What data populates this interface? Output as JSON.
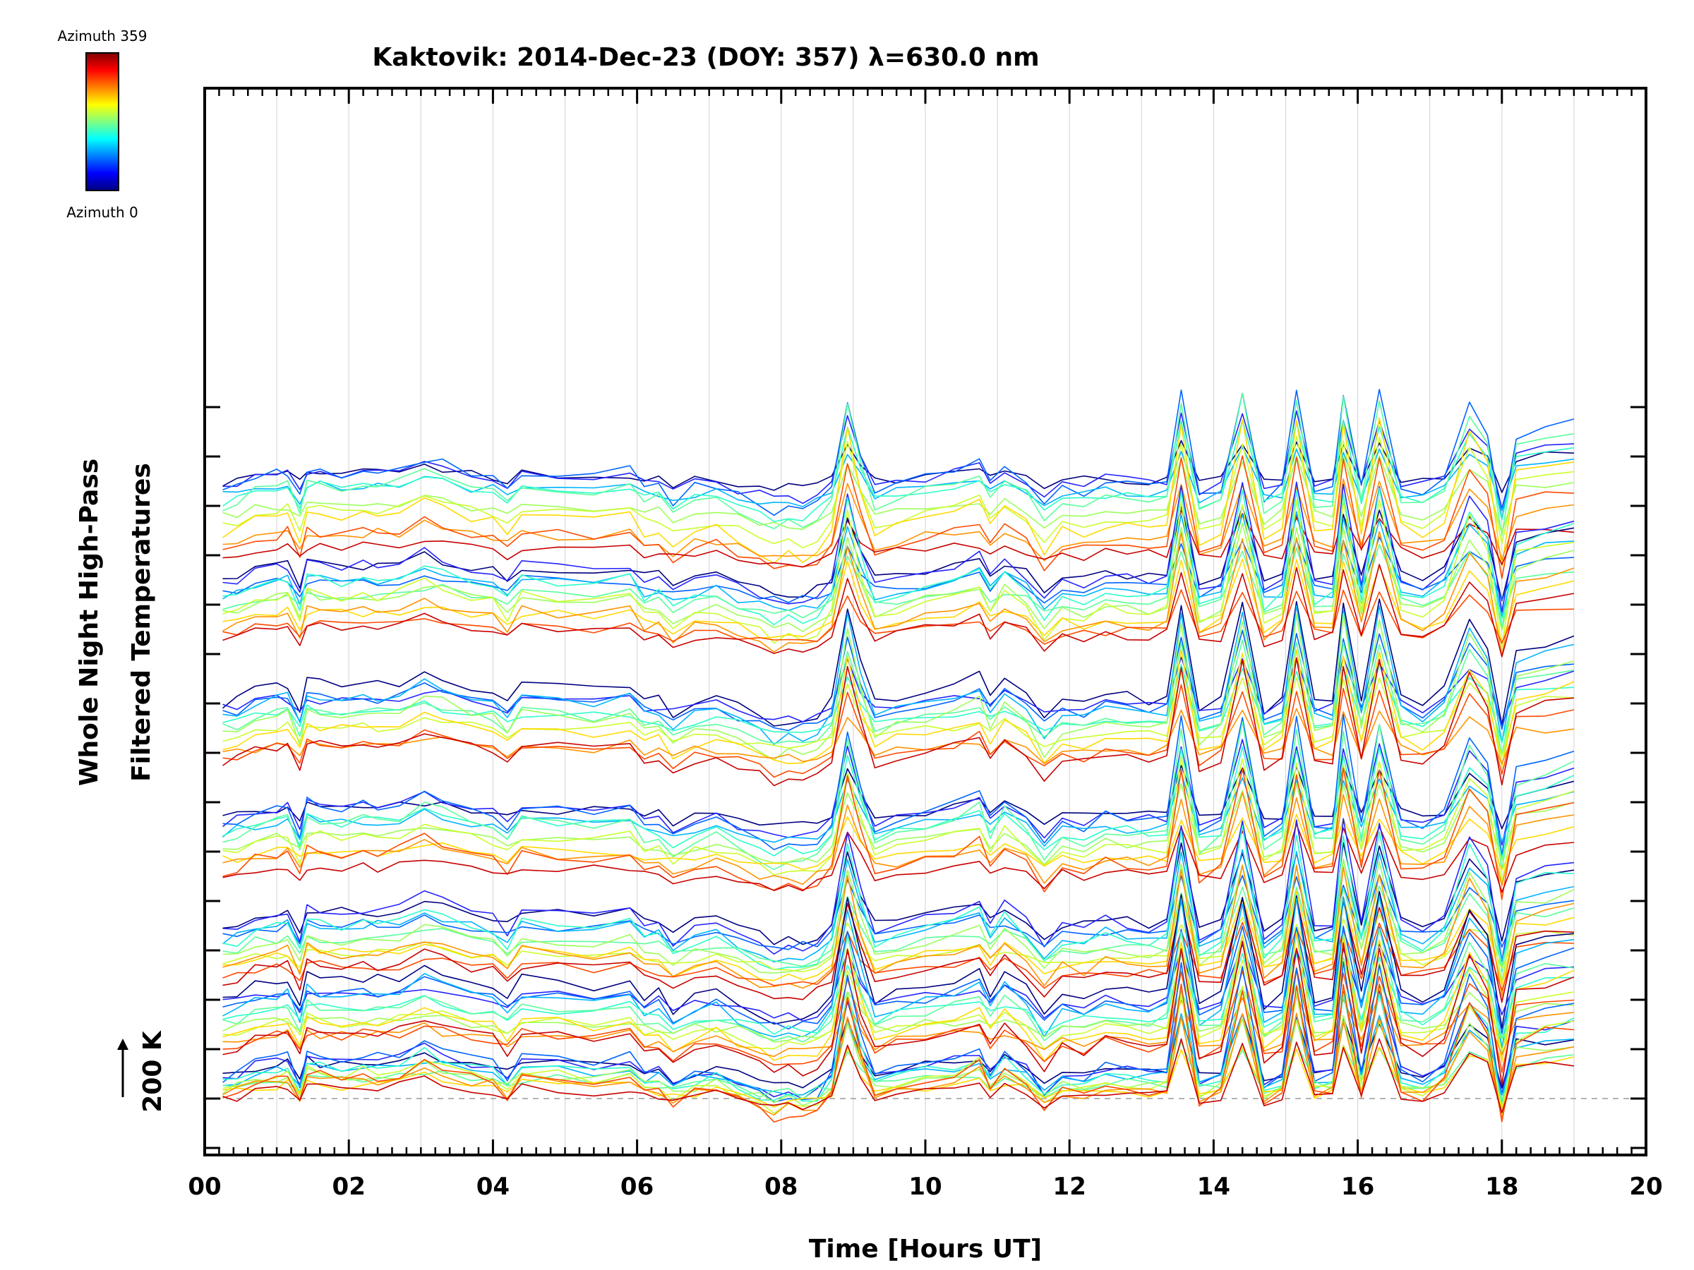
{
  "chart_data": {
    "type": "line",
    "title": "Kaktovik: 2014-Dec-23 (DOY: 357) λ=630.0 nm",
    "xlabel": "Time [Hours UT]",
    "ylabel_lines": [
      "Whole Night High-Pass",
      "Filtered Temperatures"
    ],
    "xlim": [
      0,
      20
    ],
    "x_ticks": [
      "00",
      "02",
      "04",
      "06",
      "08",
      "10",
      "12",
      "14",
      "16",
      "18",
      "20"
    ],
    "scale_marker": {
      "label": "200 K"
    },
    "colorbar": {
      "top_label": "Azimuth  359",
      "bottom_label": "Azimuth  0",
      "range": [
        0,
        359
      ]
    },
    "baseline_style": "dashed",
    "grid": "vertical",
    "traces_per_group": 12,
    "groups": 7,
    "colors": [
      "#00007f",
      "#2424ff",
      "#0064ff",
      "#00b4ff",
      "#2cffca",
      "#5aff9c",
      "#9cff5a",
      "#caff2c",
      "#ffda00",
      "#ff9400",
      "#ff4a00",
      "#c80000"
    ],
    "sample_times": [
      0.25,
      0.45,
      0.7,
      1.0,
      1.15,
      1.32,
      1.42,
      1.6,
      1.9,
      2.2,
      2.4,
      2.7,
      3.05,
      3.3,
      3.7,
      4.0,
      4.2,
      4.4,
      4.9,
      5.4,
      5.9,
      6.1,
      6.3,
      6.5,
      6.8,
      7.1,
      7.4,
      7.7,
      7.9,
      8.1,
      8.3,
      8.5,
      8.7,
      8.92,
      9.1,
      9.3,
      9.6,
      10.0,
      10.4,
      10.75,
      10.9,
      11.1,
      11.4,
      11.65,
      11.9,
      12.2,
      12.5,
      12.8,
      13.1,
      13.35,
      13.55,
      13.8,
      14.1,
      14.4,
      14.7,
      14.95,
      15.15,
      15.4,
      15.65,
      15.8,
      16.05,
      16.3,
      16.6,
      16.9,
      17.2,
      17.55,
      17.8,
      18.0,
      18.2,
      18.6,
      19.0
    ],
    "series_offsets_K": [
      1250,
      1240,
      1230,
      1220,
      1210,
      1200,
      1180,
      1160,
      1140,
      1120,
      1110,
      1100,
      1050,
      1040,
      1030,
      1020,
      1010,
      1000,
      985,
      975,
      960,
      950,
      940,
      930,
      800,
      790,
      780,
      770,
      760,
      750,
      740,
      730,
      715,
      700,
      690,
      680,
      570,
      560,
      550,
      540,
      530,
      520,
      505,
      495,
      485,
      470,
      460,
      450,
      350,
      340,
      330,
      320,
      310,
      300,
      290,
      280,
      270,
      260,
      250,
      240,
      200,
      190,
      180,
      170,
      160,
      150,
      140,
      130,
      120,
      110,
      100,
      95,
      50,
      45,
      40,
      35,
      30,
      25,
      20,
      15,
      10,
      8,
      5,
      0
    ],
    "base_profile_K": [
      0,
      5,
      20,
      25,
      30,
      -10,
      35,
      30,
      25,
      30,
      28,
      32,
      50,
      40,
      25,
      20,
      0,
      30,
      25,
      20,
      30,
      5,
      10,
      -15,
      5,
      10,
      -5,
      -20,
      -30,
      -25,
      -30,
      -20,
      5,
      140,
      60,
      0,
      10,
      20,
      30,
      45,
      10,
      40,
      15,
      -25,
      5,
      0,
      15,
      10,
      5,
      10,
      150,
      -10,
      5,
      150,
      -10,
      5,
      150,
      0,
      5,
      150,
      5,
      150,
      10,
      0,
      20,
      130,
      90,
      -40,
      80,
      90,
      100
    ]
  }
}
